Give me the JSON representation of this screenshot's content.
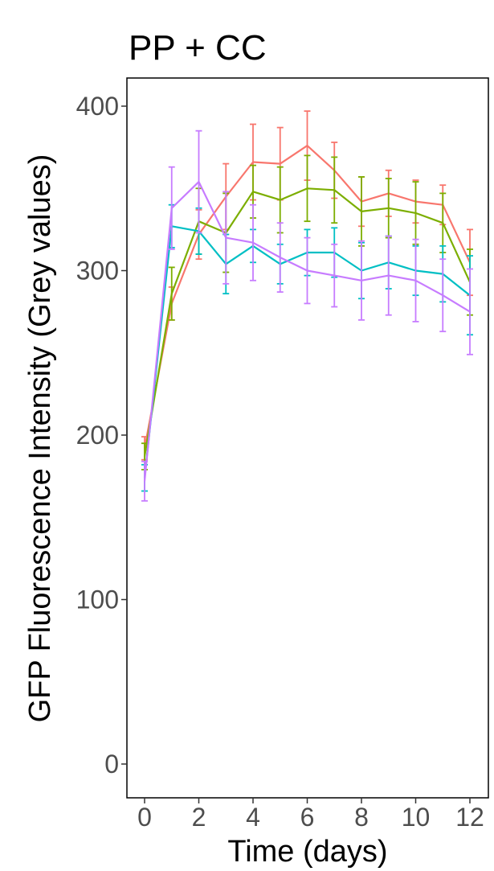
{
  "chart_data": {
    "type": "line",
    "title": "PP + CC",
    "xlabel": "Time (days)",
    "ylabel": "GFP Fluorescence Intensity (Grey values)",
    "xlim": [
      0,
      12
    ],
    "ylim": [
      0,
      400
    ],
    "x_ticks": [
      0,
      2,
      4,
      6,
      8,
      10,
      12
    ],
    "y_ticks": [
      0,
      100,
      200,
      300,
      400
    ],
    "grid": false,
    "legend": "none",
    "x": [
      0,
      1,
      2,
      3,
      4,
      5,
      6,
      7,
      8,
      9,
      10,
      11,
      12
    ],
    "series": [
      {
        "color": "#F8766D",
        "values": [
          192,
          280,
          322,
          345,
          366,
          365,
          376,
          361,
          342,
          347,
          342,
          340,
          305
        ],
        "err": [
          7,
          10,
          15,
          20,
          23,
          22,
          21,
          17,
          15,
          14,
          13,
          12,
          20
        ]
      },
      {
        "color": "#7CAE00",
        "values": [
          187,
          286,
          330,
          323,
          348,
          343,
          350,
          349,
          336,
          338,
          335,
          329,
          293
        ],
        "err": [
          8,
          16,
          20,
          24,
          16,
          20,
          20,
          20,
          21,
          18,
          19,
          18,
          20
        ]
      },
      {
        "color": "#00BFC4",
        "values": [
          174,
          327,
          324,
          304,
          315,
          304,
          311,
          311,
          300,
          305,
          300,
          298,
          285
        ],
        "err": [
          8,
          13,
          14,
          18,
          10,
          12,
          14,
          15,
          17,
          16,
          15,
          17,
          24
        ]
      },
      {
        "color": "#C77CFF",
        "values": [
          172,
          338,
          354,
          320,
          317,
          308,
          300,
          297,
          294,
          297,
          294,
          285,
          275
        ],
        "err": [
          12,
          25,
          31,
          28,
          23,
          21,
          20,
          19,
          24,
          24,
          25,
          22,
          26
        ]
      }
    ]
  }
}
